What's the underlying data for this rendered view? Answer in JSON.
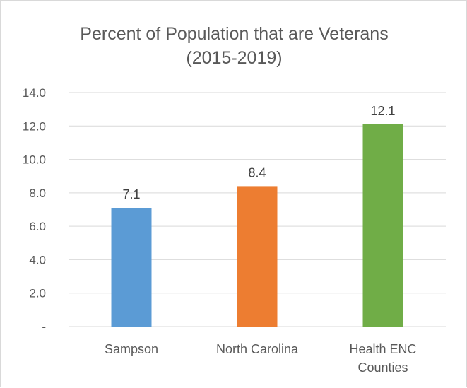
{
  "chart_data": {
    "type": "bar",
    "title_lines": [
      "Percent of Population that are Veterans",
      "(2015-2019)"
    ],
    "categories": [
      [
        "Sampson"
      ],
      [
        "North Carolina"
      ],
      [
        "Health ENC",
        "Counties"
      ]
    ],
    "values": [
      7.1,
      8.4,
      12.1
    ],
    "data_labels": [
      "7.1",
      "8.4",
      "12.1"
    ],
    "colors": [
      "#5b9bd5",
      "#ed7d31",
      "#70ad47"
    ],
    "ylim": [
      0,
      14
    ],
    "yticks": [
      0,
      2,
      4,
      6,
      8,
      10,
      12,
      14
    ],
    "ytick_labels": [
      "-",
      "2.0",
      "4.0",
      "6.0",
      "8.0",
      "10.0",
      "12.0",
      "14.0"
    ],
    "grid": true,
    "legend": "none"
  }
}
